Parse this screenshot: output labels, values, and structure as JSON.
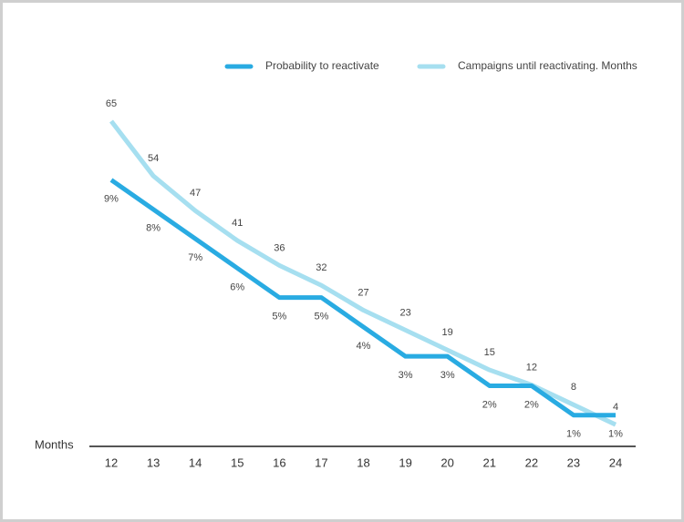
{
  "chart_data": {
    "type": "line",
    "categories": [
      "12",
      "13",
      "14",
      "15",
      "16",
      "17",
      "18",
      "19",
      "20",
      "21",
      "22",
      "23",
      "24"
    ],
    "x_label": "Months",
    "series": [
      {
        "name": "Probability to reactivate",
        "color": "#29abe2",
        "axis": "y2",
        "values": [
          9,
          8,
          7,
          6,
          5,
          5,
          4,
          3,
          3,
          2,
          2,
          1,
          1
        ],
        "value_labels": [
          "9%",
          "8%",
          "7%",
          "6%",
          "5%",
          "5%",
          "4%",
          "3%",
          "3%",
          "2%",
          "2%",
          "1%",
          "1%"
        ]
      },
      {
        "name": "Campaigns until reactivating. Months",
        "color": "#a6dff0",
        "values": [
          65,
          54,
          47,
          41,
          36,
          32,
          27,
          23,
          19,
          15,
          12,
          8,
          4
        ]
      }
    ],
    "ylim": [
      0,
      65
    ],
    "y2lim": [
      0,
      11
    ],
    "legend": "top-right"
  }
}
